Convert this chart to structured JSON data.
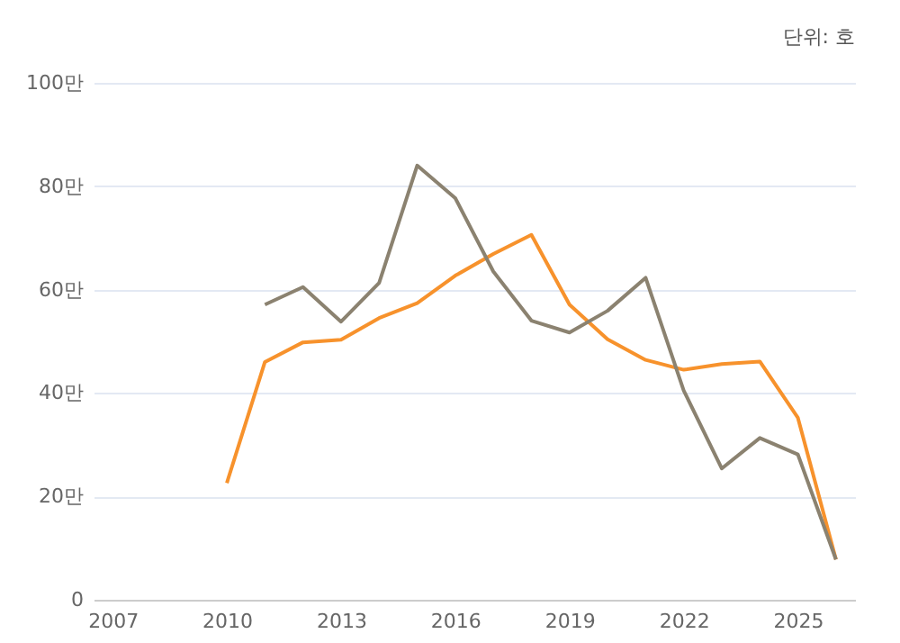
{
  "chart_data": {
    "type": "line",
    "annotations": [
      "단위: 호"
    ],
    "x": [
      2010,
      2011,
      2012,
      2013,
      2014,
      2015,
      2016,
      2017,
      2018,
      2019,
      2020,
      2021,
      2022,
      2023,
      2024,
      2025,
      2026
    ],
    "series": [
      {
        "color": "#f7922c",
        "values": [
          22.6,
          46.0,
          49.8,
          50.3,
          54.5,
          57.4,
          62.7,
          66.9,
          70.6,
          57.1,
          50.4,
          46.4,
          44.5,
          45.6,
          46.1,
          35.2,
          7.8
        ]
      },
      {
        "color": "#8b8270",
        "values": [
          null,
          57.1,
          60.5,
          53.8,
          61.3,
          84.0,
          77.7,
          63.5,
          54.0,
          51.7,
          55.9,
          62.3,
          40.5,
          25.4,
          31.3,
          28.1,
          7.8
        ]
      }
    ],
    "xlim": [
      2006.5,
      2026.5
    ],
    "xticks": [
      2007,
      2010,
      2013,
      2016,
      2019,
      2022,
      2025
    ],
    "ylim": [
      0,
      100
    ],
    "yticks": [
      0,
      {
        "value": 20,
        "label": "20만"
      },
      {
        "value": 40,
        "label": "40만"
      },
      {
        "value": 60,
        "label": "60만"
      },
      {
        "value": 80,
        "label": "80만"
      },
      {
        "value": 100,
        "label": "100만"
      }
    ],
    "grid": "y",
    "legend": false,
    "marker": "none",
    "line_style": "solid"
  }
}
